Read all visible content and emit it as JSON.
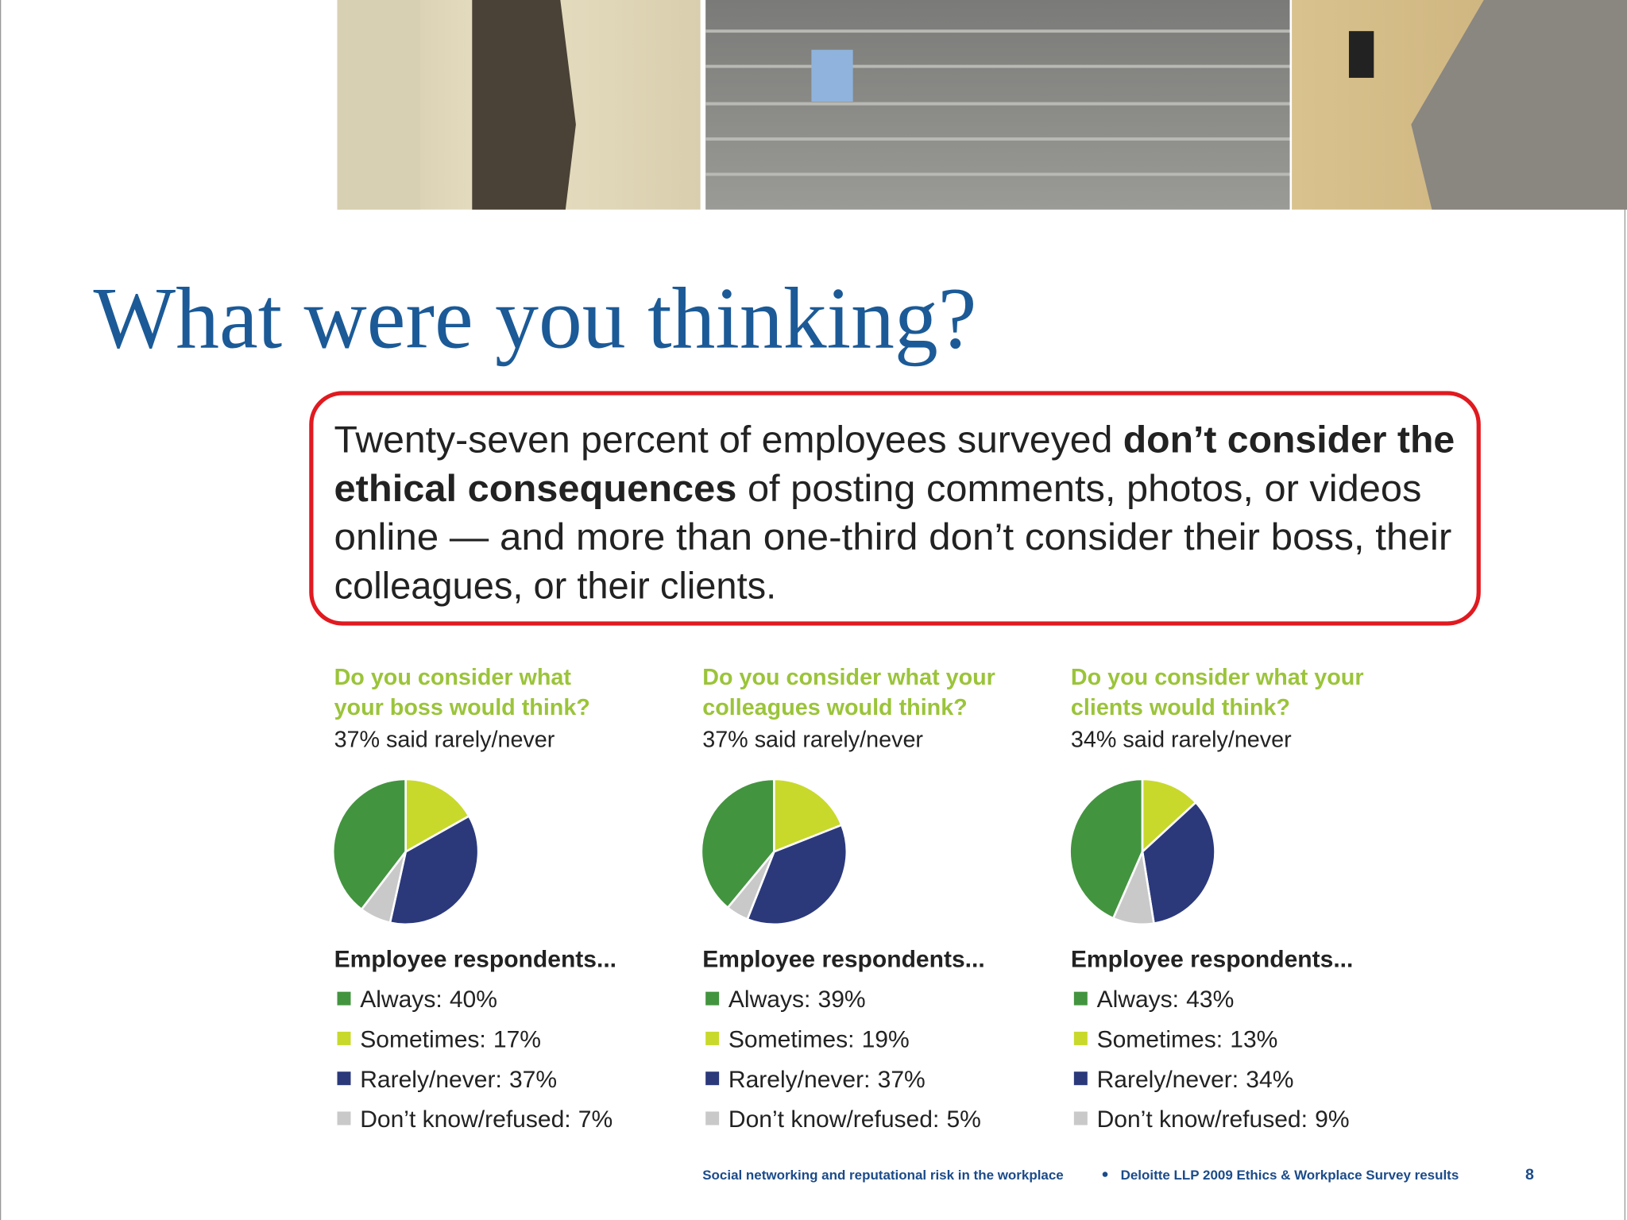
{
  "header": {
    "title": "What were you thinking?"
  },
  "callout_lines": [
    [
      {
        "text": "Twenty-seven percent of employees surveyed ",
        "bold": false
      },
      {
        "text": "don’t consider the",
        "bold": true
      }
    ],
    [
      {
        "text": "ethical consequences",
        "bold": true
      },
      {
        "text": " of posting comments, photos, or videos",
        "bold": false
      }
    ],
    [
      {
        "text": "online — and more than one-third don’t consider their boss, their",
        "bold": false
      }
    ],
    [
      {
        "text": "colleagues, or their clients.",
        "bold": false
      }
    ]
  ],
  "chart_data": [
    {
      "type": "pie",
      "title": [
        "Do you consider what",
        "your boss would think?"
      ],
      "subtitle": "37% said rarely/never",
      "legend_title": "Employee respondents...",
      "categories": [
        "Always:",
        "Sometimes:",
        "Rarely/never:",
        "Don’t know/refused:"
      ],
      "values": [
        40,
        17,
        37,
        7
      ],
      "value_labels": [
        "40%",
        "17%",
        "37%",
        "7%"
      ],
      "colors": [
        "#43943f",
        "#c8d92c",
        "#2b397b",
        "#c9c9c9"
      ]
    },
    {
      "type": "pie",
      "title": [
        "Do you consider what your",
        "colleagues would think?"
      ],
      "subtitle": "37% said rarely/never",
      "legend_title": "Employee respondents...",
      "categories": [
        "Always:",
        "Sometimes:",
        "Rarely/never:",
        "Don’t know/refused:"
      ],
      "values": [
        39,
        19,
        37,
        5
      ],
      "value_labels": [
        "39%",
        "19%",
        "37%",
        "5%"
      ],
      "colors": [
        "#43943f",
        "#c8d92c",
        "#2b397b",
        "#c9c9c9"
      ]
    },
    {
      "type": "pie",
      "title": [
        "Do you consider what your",
        "clients would think?"
      ],
      "subtitle": "34% said rarely/never",
      "legend_title": "Employee respondents...",
      "categories": [
        "Always:",
        "Sometimes:",
        "Rarely/never:",
        "Don’t know/refused:"
      ],
      "values": [
        43,
        13,
        34,
        9
      ],
      "value_labels": [
        "43%",
        "13%",
        "34%",
        "9%"
      ],
      "colors": [
        "#43943f",
        "#c8d92c",
        "#2b397b",
        "#c9c9c9"
      ]
    }
  ],
  "footer": {
    "left": "Social networking and reputational risk in the workplace",
    "right": "Deloitte LLP 2009 Ethics & Workplace Survey results",
    "page": "8"
  }
}
